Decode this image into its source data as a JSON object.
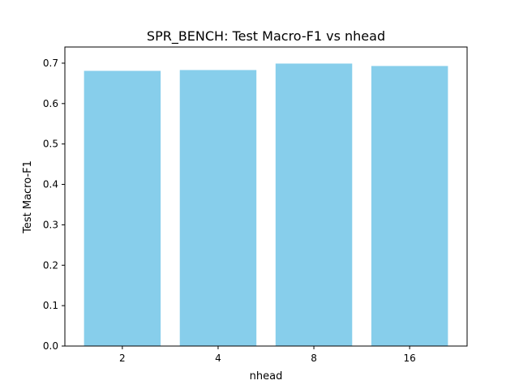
{
  "chart_data": {
    "type": "bar",
    "title": "SPR_BENCH: Test Macro-F1 vs nhead",
    "xlabel": "nhead",
    "ylabel": "Test Macro-F1",
    "categories": [
      "2",
      "4",
      "8",
      "16"
    ],
    "values": [
      0.681,
      0.683,
      0.699,
      0.693
    ],
    "ylim": [
      0,
      0.74
    ],
    "yticks": [
      0.0,
      0.1,
      0.2,
      0.3,
      0.4,
      0.5,
      0.6,
      0.7
    ],
    "ytick_labels": [
      "0.0",
      "0.1",
      "0.2",
      "0.3",
      "0.4",
      "0.5",
      "0.6",
      "0.7"
    ],
    "bar_color": "#87CEEB",
    "grid": false,
    "legend": "none"
  }
}
